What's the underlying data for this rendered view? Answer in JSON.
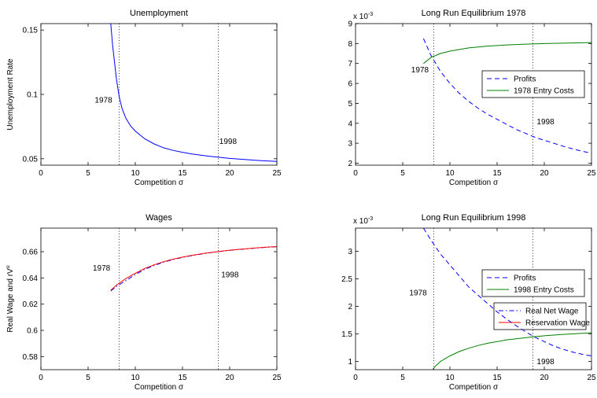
{
  "chart_data": [
    {
      "type": "line",
      "title": "Unemployment",
      "xlabel": "Competition σ",
      "ylabel": "Unemployment Rate",
      "xlim": [
        0,
        25
      ],
      "ylim": [
        0.045,
        0.155
      ],
      "xticks": [
        0,
        5,
        10,
        15,
        20,
        25
      ],
      "yticks": [
        0.05,
        0.1,
        0.15
      ],
      "ytick_labels": [
        "0.05",
        "0.1",
        "0.15"
      ],
      "grid": false,
      "exponent_label": "",
      "legend": null,
      "vlines": [
        8.3,
        18.8
      ],
      "annotations": [
        {
          "text": "1978",
          "x": 5.7,
          "y": 0.0935
        },
        {
          "text": "1998",
          "x": 18.9,
          "y": 0.0615
        }
      ],
      "series": [
        {
          "color": "#0000ff",
          "style": "solid",
          "x": [
            7.4,
            7.6,
            7.8,
            8.0,
            8.3,
            8.6,
            9.0,
            9.5,
            10.0,
            11.0,
            12.0,
            13.0,
            14.0,
            15.0,
            16.0,
            17.0,
            18.0,
            19.0,
            20.0,
            21.0,
            22.0,
            23.0,
            24.0,
            25.0
          ],
          "y": [
            0.155,
            0.138,
            0.125,
            0.112,
            0.098,
            0.089,
            0.0815,
            0.0755,
            0.0715,
            0.0655,
            0.0615,
            0.0585,
            0.0565,
            0.055,
            0.0537,
            0.0527,
            0.0518,
            0.051,
            0.0503,
            0.0497,
            0.0492,
            0.0487,
            0.0483,
            0.0479
          ]
        }
      ]
    },
    {
      "type": "line",
      "title": "Long Run Equilibrium 1978",
      "xlabel": "Competition σ",
      "ylabel": "",
      "xlim": [
        0,
        25
      ],
      "ylim": [
        1.9,
        9
      ],
      "xticks": [
        0,
        5,
        10,
        15,
        20,
        25
      ],
      "yticks": [
        2,
        3,
        4,
        5,
        6,
        7,
        8,
        9
      ],
      "ytick_labels": [
        "2",
        "3",
        "4",
        "5",
        "6",
        "7",
        "8",
        "9"
      ],
      "grid": false,
      "exponent_label": "x 10",
      "exponent_power": "-3",
      "legend": {
        "position": "upper-right-inset"
      },
      "vlines": [
        8.3,
        18.8
      ],
      "annotations": [
        {
          "text": "1978",
          "x": 5.9,
          "y": 6.55
        },
        {
          "text": "1998",
          "x": 19.2,
          "y": 3.95
        }
      ],
      "series": [
        {
          "name": "Profits",
          "color": "#0000ff",
          "style": "dashed",
          "x": [
            7.2,
            8.0,
            9.0,
            10.0,
            11.0,
            12.0,
            13.0,
            14.0,
            15.0,
            16.0,
            17.0,
            18.0,
            19.0,
            20.0,
            21.0,
            22.0,
            23.0,
            24.0,
            25.0
          ],
          "y": [
            8.25,
            7.4,
            6.6,
            6.0,
            5.5,
            5.1,
            4.75,
            4.45,
            4.2,
            3.95,
            3.7,
            3.5,
            3.3,
            3.15,
            3.0,
            2.85,
            2.72,
            2.6,
            2.5
          ]
        },
        {
          "name": "1978 Entry Costs",
          "color": "#008000",
          "style": "solid",
          "x": [
            7.2,
            8.0,
            9.0,
            10.0,
            12.0,
            14.0,
            16.0,
            18.0,
            20.0,
            22.0,
            25.0
          ],
          "y": [
            7.0,
            7.3,
            7.5,
            7.62,
            7.78,
            7.87,
            7.93,
            7.97,
            8.0,
            8.02,
            8.05
          ]
        }
      ]
    },
    {
      "type": "line",
      "title": "Wages",
      "xlabel": "Competition σ",
      "ylabel": "Real Wage and rV",
      "ylabel_superscript": "u",
      "xlim": [
        0,
        25
      ],
      "ylim": [
        0.57,
        0.678
      ],
      "xticks": [
        0,
        5,
        10,
        15,
        20,
        25
      ],
      "yticks": [
        0.58,
        0.6,
        0.62,
        0.64,
        0.66
      ],
      "ytick_labels": [
        "0.58",
        "0.6",
        "0.62",
        "0.64",
        "0.66"
      ],
      "grid": false,
      "exponent_label": "",
      "legend": {
        "position": "lower-right-inset"
      },
      "vlines": [
        8.3,
        18.8
      ],
      "annotations": [
        {
          "text": "1978",
          "x": 5.5,
          "y": 0.6455
        },
        {
          "text": "1998",
          "x": 19.1,
          "y": 0.6405
        }
      ],
      "series": [
        {
          "name": "Real Net Wage",
          "color": "#0000ff",
          "style": "dashdot",
          "x": [
            7.4,
            8.0,
            9.0,
            10.0,
            11.0,
            12.0,
            13.0,
            14.0,
            15.0,
            16.0,
            17.0,
            18.0,
            19.0,
            20.0,
            21.0,
            22.0,
            23.0,
            24.0,
            25.0
          ],
          "y": [
            0.63,
            0.6335,
            0.638,
            0.6425,
            0.6465,
            0.6495,
            0.652,
            0.654,
            0.6557,
            0.657,
            0.6582,
            0.6593,
            0.6602,
            0.661,
            0.6617,
            0.6623,
            0.6629,
            0.6634,
            0.6638
          ]
        },
        {
          "name": "Reservation Wage",
          "color": "#ff0000",
          "style": "solid",
          "x": [
            7.4,
            8.0,
            9.0,
            10.0,
            11.0,
            12.0,
            13.0,
            14.0,
            15.0,
            16.0,
            17.0,
            18.0,
            19.0,
            20.0,
            21.0,
            22.0,
            23.0,
            24.0,
            25.0
          ],
          "y": [
            0.6305,
            0.6345,
            0.6395,
            0.6435,
            0.6472,
            0.65,
            0.6524,
            0.6543,
            0.6559,
            0.6572,
            0.6584,
            0.6594,
            0.6603,
            0.6611,
            0.6618,
            0.6624,
            0.663,
            0.6635,
            0.6639
          ]
        }
      ]
    },
    {
      "type": "line",
      "title": "Long Run Equilibrium 1998",
      "xlabel": "Competition σ",
      "ylabel": "",
      "xlim": [
        0,
        25
      ],
      "ylim": [
        0.85,
        3.42
      ],
      "xticks": [
        0,
        5,
        10,
        15,
        20,
        25
      ],
      "yticks": [
        1,
        1.5,
        2,
        2.5,
        3
      ],
      "ytick_labels": [
        "1",
        "1.5",
        "2",
        "2.5",
        "3"
      ],
      "grid": false,
      "exponent_label": "x 10",
      "exponent_power": "-3",
      "legend": {
        "position": "upper-right-inset"
      },
      "vlines": [
        8.3,
        18.8
      ],
      "annotations": [
        {
          "text": "1978",
          "x": 5.7,
          "y": 2.2
        },
        {
          "text": "1998",
          "x": 19.2,
          "y": 0.95
        }
      ],
      "series": [
        {
          "name": "Profits",
          "color": "#0000ff",
          "style": "dashed",
          "x": [
            7.2,
            8.0,
            9.0,
            10.0,
            11.0,
            12.0,
            13.0,
            14.0,
            15.0,
            16.0,
            17.0,
            18.0,
            19.0,
            20.0,
            21.0,
            22.0,
            23.0,
            24.0,
            25.0
          ],
          "y": [
            3.42,
            3.2,
            2.95,
            2.75,
            2.55,
            2.35,
            2.2,
            2.05,
            1.9,
            1.77,
            1.65,
            1.54,
            1.44,
            1.36,
            1.28,
            1.22,
            1.17,
            1.13,
            1.1
          ]
        },
        {
          "name": "1998 Entry Costs",
          "color": "#008000",
          "style": "solid",
          "x": [
            8.2,
            8.5,
            9.0,
            10.0,
            11.0,
            12.0,
            13.0,
            14.0,
            15.0,
            16.0,
            17.0,
            18.0,
            19.0,
            20.0,
            21.0,
            22.0,
            23.0,
            24.0,
            25.0
          ],
          "y": [
            0.86,
            0.92,
            1.0,
            1.1,
            1.18,
            1.24,
            1.29,
            1.33,
            1.36,
            1.39,
            1.41,
            1.43,
            1.45,
            1.465,
            1.478,
            1.49,
            1.5,
            1.51,
            1.52
          ]
        }
      ]
    }
  ]
}
